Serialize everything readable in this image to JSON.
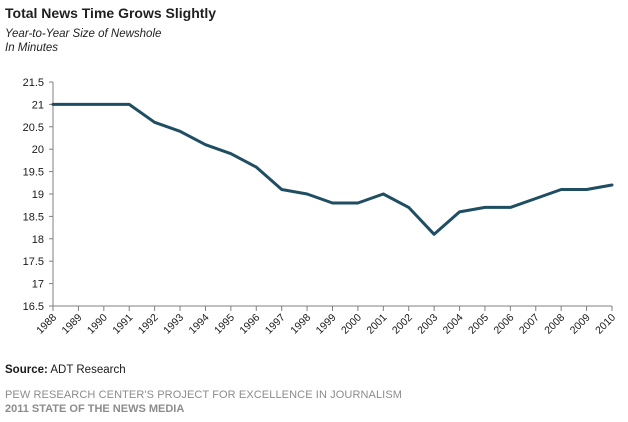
{
  "header": {
    "title": "Total News Time Grows Slightly",
    "subtitle_line1": "Year-to-Year Size of Newshole",
    "subtitle_line2": "In Minutes"
  },
  "source": {
    "label": "Source:",
    "text": "ADT Research"
  },
  "footer": {
    "line1": "PEW RESEARCH CENTER'S PROJECT FOR EXCELLENCE IN JOURNALISM",
    "line2": "2011 STATE OF THE NEWS MEDIA"
  },
  "colors": {
    "line": "#1f4e63",
    "axis": "#808080"
  },
  "chart_data": {
    "type": "line",
    "x": [
      "1988",
      "1989",
      "1990",
      "1991",
      "1992",
      "1993",
      "1994",
      "1995",
      "1996",
      "1997",
      "1998",
      "1999",
      "2000",
      "2001",
      "2002",
      "2003",
      "2004",
      "2005",
      "2006",
      "2007",
      "2008",
      "2009",
      "2010"
    ],
    "series": [
      {
        "values": [
          21,
          21,
          21,
          21,
          20.6,
          20.4,
          20.1,
          19.9,
          19.6,
          19.1,
          19.0,
          18.8,
          18.8,
          19.0,
          18.7,
          18.1,
          18.6,
          18.7,
          18.7,
          18.9,
          19.1,
          19.1,
          19.2
        ]
      }
    ],
    "yticks": [
      "16.5",
      "17",
      "17.5",
      "18",
      "18.5",
      "19",
      "19.5",
      "20",
      "20.5",
      "21",
      "21.5"
    ],
    "ylim": [
      16.5,
      21.5
    ],
    "grid": false,
    "legend": "none"
  }
}
